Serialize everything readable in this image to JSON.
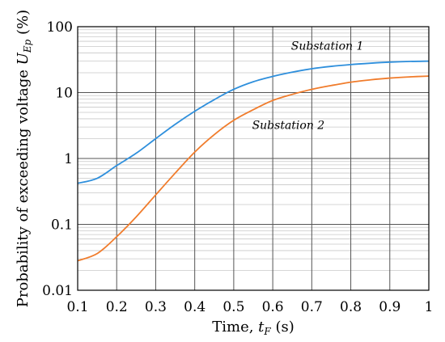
{
  "chart_data": {
    "type": "line",
    "xlabel": {
      "prefix": "Time, ",
      "var": "t",
      "sub": "F",
      "suffix": " (s)"
    },
    "ylabel": {
      "prefix": "Probability of exceeding voltage ",
      "var": "U",
      "sub": "Ep",
      "suffix": " (%)"
    },
    "xlim": [
      0.1,
      1.0
    ],
    "ylim": [
      0.01,
      100
    ],
    "y_scale": "log",
    "grid": true,
    "legend": "none",
    "x_ticks": [
      "0.1",
      "0.2",
      "0.3",
      "0.4",
      "0.5",
      "0.6",
      "0.7",
      "0.8",
      "0.9",
      "1"
    ],
    "y_ticks": [
      {
        "value": 0.01,
        "label": "0.01"
      },
      {
        "value": 0.1,
        "label": "0.1"
      },
      {
        "value": 1,
        "label": "1"
      },
      {
        "value": 10,
        "label": "10"
      },
      {
        "value": 100,
        "label": "100"
      }
    ],
    "series": [
      {
        "name": "Substation 1",
        "color": "#2e8fdc",
        "x": [
          0.1,
          0.15,
          0.2,
          0.25,
          0.3,
          0.35,
          0.4,
          0.45,
          0.5,
          0.55,
          0.6,
          0.65,
          0.7,
          0.75,
          0.8,
          0.85,
          0.9,
          0.95,
          1.0
        ],
        "y": [
          0.42,
          0.5,
          0.78,
          1.2,
          2.0,
          3.3,
          5.2,
          7.8,
          11.2,
          14.6,
          17.6,
          20.4,
          23.0,
          25.0,
          26.6,
          27.9,
          29.0,
          29.7,
          30.0
        ]
      },
      {
        "name": "Substation 2",
        "color": "#f07c2c",
        "x": [
          0.1,
          0.15,
          0.2,
          0.25,
          0.3,
          0.35,
          0.4,
          0.45,
          0.5,
          0.55,
          0.6,
          0.65,
          0.7,
          0.75,
          0.8,
          0.85,
          0.9,
          0.95,
          1.0
        ],
        "y": [
          0.028,
          0.036,
          0.065,
          0.13,
          0.28,
          0.6,
          1.25,
          2.3,
          3.8,
          5.5,
          7.6,
          9.4,
          11.2,
          12.8,
          14.4,
          15.6,
          16.6,
          17.3,
          17.8
        ]
      }
    ],
    "annotations": [
      {
        "text": "Substation 1",
        "x": 0.74,
        "y": 45
      },
      {
        "text": "Substation 2",
        "x": 0.64,
        "y": 2.8
      }
    ]
  }
}
